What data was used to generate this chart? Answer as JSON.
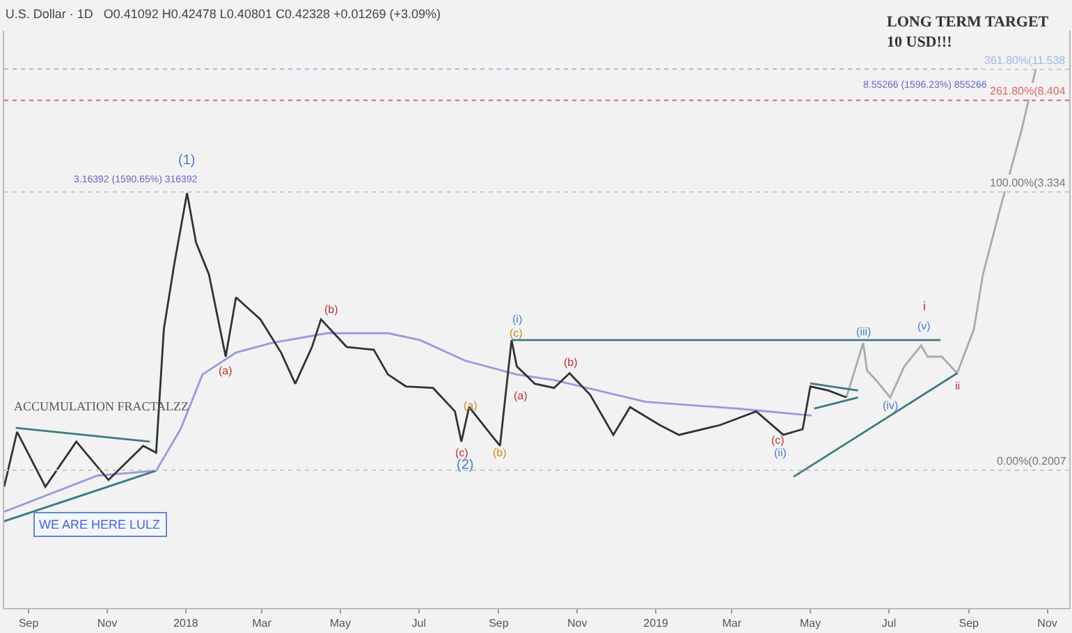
{
  "chart_data": {
    "type": "line",
    "log": "y",
    "subtitle": "U.S. Dollar · 1D   O0.41092 H0.42478 L0.40801 C0.42328 +0.01269 (+3.09%)",
    "tick_labels": "x",
    "grid": false,
    "marker": "none",
    "line_style": "solid",
    "xlim": [
      "2017-08-13",
      "2019-11-18"
    ],
    "ylim": [
      0.05,
      17
    ],
    "xticks": [
      {
        "value": "2017-09-01",
        "label": "Sep"
      },
      {
        "value": "2017-11-01",
        "label": "Nov"
      },
      {
        "value": "2018-01-01",
        "label": "2018"
      },
      {
        "value": "2018-03-01",
        "label": "Mar"
      },
      {
        "value": "2018-05-01",
        "label": "May"
      },
      {
        "value": "2018-07-01",
        "label": "Jul"
      },
      {
        "value": "2018-09-01",
        "label": "Sep"
      },
      {
        "value": "2018-11-01",
        "label": "Nov"
      },
      {
        "value": "2019-01-01",
        "label": "2019"
      },
      {
        "value": "2019-03-01",
        "label": "Mar"
      },
      {
        "value": "2019-05-01",
        "label": "May"
      },
      {
        "value": "2019-07-01",
        "label": "Jul"
      },
      {
        "value": "2019-09-01",
        "label": "Sep"
      },
      {
        "value": "2019-11-01",
        "label": "Nov"
      }
    ],
    "series": [
      {
        "color": "#9999dd",
        "x": [
          "2017-08-13",
          "2017-10-24",
          "2017-12-09",
          "2017-12-28",
          "2018-01-14",
          "2018-02-09",
          "2018-03-09",
          "2018-04-21",
          "2018-06-07",
          "2018-07-02",
          "2018-08-06",
          "2018-09-15",
          "2018-10-14",
          "2018-12-24",
          "2019-03-06",
          "2019-05-02"
        ],
        "values": [
          0.132,
          0.19,
          0.2,
          0.304,
          0.528,
          0.659,
          0.727,
          0.801,
          0.801,
          0.747,
          0.607,
          0.528,
          0.499,
          0.401,
          0.374,
          0.349
        ]
      },
      {
        "color": "#aaaaaa",
        "x": [
          "2019-05-29",
          "2019-06-11",
          "2019-06-14",
          "2019-06-21",
          "2019-07-02",
          "2019-07-13",
          "2019-07-26",
          "2019-07-31",
          "2019-08-11",
          "2019-08-23",
          "2019-09-05",
          "2019-09-12",
          "2019-09-26",
          "2019-10-12",
          "2019-10-23"
        ],
        "values": [
          0.419,
          0.727,
          0.55,
          0.499,
          0.419,
          0.574,
          0.707,
          0.632,
          0.632,
          0.535,
          0.835,
          1.45,
          2.91,
          6.22,
          11.5
        ]
      },
      {
        "color": "#2f3335",
        "x": [
          "2017-08-13",
          "2017-08-23",
          "2017-09-14",
          "2017-10-08",
          "2017-11-02",
          "2017-11-29",
          "2017-12-09",
          "2017-12-15",
          "2017-12-23",
          "2018-01-02",
          "2018-01-09",
          "2018-01-19",
          "2018-02-01",
          "2018-02-09",
          "2018-02-28",
          "2018-03-16",
          "2018-03-27",
          "2018-04-09",
          "2018-04-16",
          "2018-05-06",
          "2018-05-27",
          "2018-06-07",
          "2018-06-21",
          "2018-07-12",
          "2018-07-29",
          "2018-08-03",
          "2018-08-09",
          "2018-08-27",
          "2018-09-02",
          "2018-09-11",
          "2018-09-15",
          "2018-09-29",
          "2018-10-14",
          "2018-10-26",
          "2018-11-11",
          "2018-11-29",
          "2018-12-12",
          "2019-01-04",
          "2019-01-19",
          "2019-02-20",
          "2019-03-20",
          "2019-04-10",
          "2019-04-25",
          "2019-05-01",
          "2019-05-15",
          "2019-05-29"
        ],
        "values": [
          0.17,
          0.296,
          0.17,
          0.268,
          0.182,
          0.257,
          0.24,
          0.835,
          1.6,
          3.3,
          2.0,
          1.45,
          0.632,
          1.15,
          0.921,
          0.659,
          0.481,
          0.697,
          0.921,
          0.697,
          0.678,
          0.528,
          0.468,
          0.461,
          0.364,
          0.268,
          0.38,
          0.283,
          0.257,
          0.747,
          0.574,
          0.481,
          0.461,
          0.535,
          0.43,
          0.287,
          0.38,
          0.317,
          0.287,
          0.317,
          0.364,
          0.287,
          0.304,
          0.468,
          0.449,
          0.419
        ]
      },
      {
        "color": "#3d7a80",
        "x": [
          "2018-09-11",
          "2019-08-10"
        ],
        "values": [
          0.747,
          0.747
        ]
      },
      {
        "color": "#3d7a80",
        "x": [
          "2019-04-18",
          "2019-08-23"
        ],
        "values": [
          0.188,
          0.535
        ]
      },
      {
        "color": "#3d7a80",
        "x": [
          "2017-08-22",
          "2017-12-04"
        ],
        "values": [
          0.308,
          0.268
        ]
      },
      {
        "color": "#3d7a80",
        "x": [
          "2017-08-13",
          "2017-12-09"
        ],
        "values": [
          0.12,
          0.2
        ]
      },
      {
        "color": "#3d7a80",
        "x": [
          "2019-05-01",
          "2019-06-07"
        ],
        "values": [
          0.483,
          0.449
        ]
      },
      {
        "color": "#3d7a80",
        "x": [
          "2019-05-04",
          "2019-06-07"
        ],
        "values": [
          0.374,
          0.419
        ]
      }
    ],
    "ref_lines": [
      {
        "axis": "y",
        "value": 11.538,
        "label": "361.80%(11.538",
        "color": "#9fb8e8",
        "line_style": "dotted"
      },
      {
        "axis": "y",
        "value": 8.404,
        "label": "261.80%(8.404",
        "color": "#e06666",
        "line_style": "dotted"
      },
      {
        "axis": "y",
        "value": 3.334,
        "label": "100.00%(3.334",
        "color": "#c8c8c8",
        "line_style": "dotted"
      },
      {
        "axis": "y",
        "value": 0.2007,
        "label": "0.00%(0.2007",
        "color": "#c8c8c8",
        "line_style": "dotted"
      }
    ],
    "annotations": [
      "LONG TERM TARGET\n10 USD!!!",
      "ACCUMULATION FRACTALZZ",
      "WE ARE HERE LULZ",
      "(1)",
      "3.16392 (1590.65%) 316392",
      "8.55266 (1596.23%) 855266",
      "(a)",
      "(b)",
      "(c)",
      "(2)",
      "(a)",
      "(b)",
      "(i)",
      "(c)",
      "(a)",
      "(b)",
      "(c)",
      "(ii)",
      "(iii)",
      "(iv)",
      "(v)",
      "i",
      "ii"
    ]
  }
}
